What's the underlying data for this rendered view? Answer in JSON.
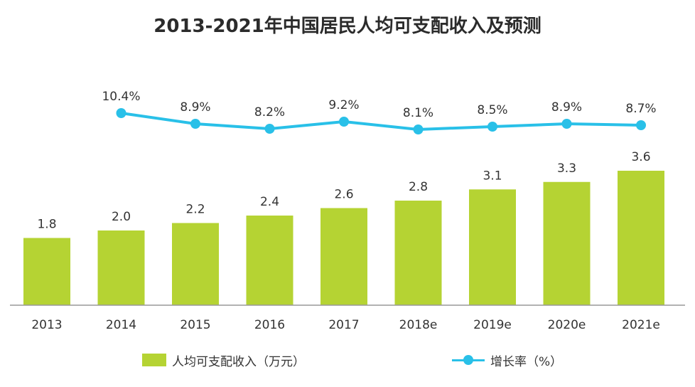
{
  "chart_data": {
    "type": "bar",
    "title": "2013-2021年中国居民人均可支配收入及预测",
    "categories": [
      "2013",
      "2014",
      "2015",
      "2016",
      "2017",
      "2018e",
      "2019e",
      "2020e",
      "2021e"
    ],
    "series": [
      {
        "name": "人均可支配收入（万元）",
        "type": "bar",
        "values": [
          1.8,
          2.0,
          2.2,
          2.4,
          2.6,
          2.8,
          3.1,
          3.3,
          3.6
        ],
        "labels": [
          "1.8",
          "2.0",
          "2.2",
          "2.4",
          "2.6",
          "2.8",
          "3.1",
          "3.3",
          "3.6"
        ],
        "color": "#b5d333"
      },
      {
        "name": "增长率（%）",
        "type": "line",
        "values": [
          null,
          10.4,
          8.9,
          8.2,
          9.2,
          8.1,
          8.5,
          8.9,
          8.7
        ],
        "labels": [
          "",
          "10.4%",
          "8.9%",
          "8.2%",
          "9.2%",
          "8.1%",
          "8.5%",
          "8.9%",
          "8.7%"
        ],
        "color": "#29c0e8"
      }
    ],
    "legend_position": "bottom",
    "grid": false
  },
  "colors": {
    "axis": "#999999",
    "text": "#333333"
  }
}
